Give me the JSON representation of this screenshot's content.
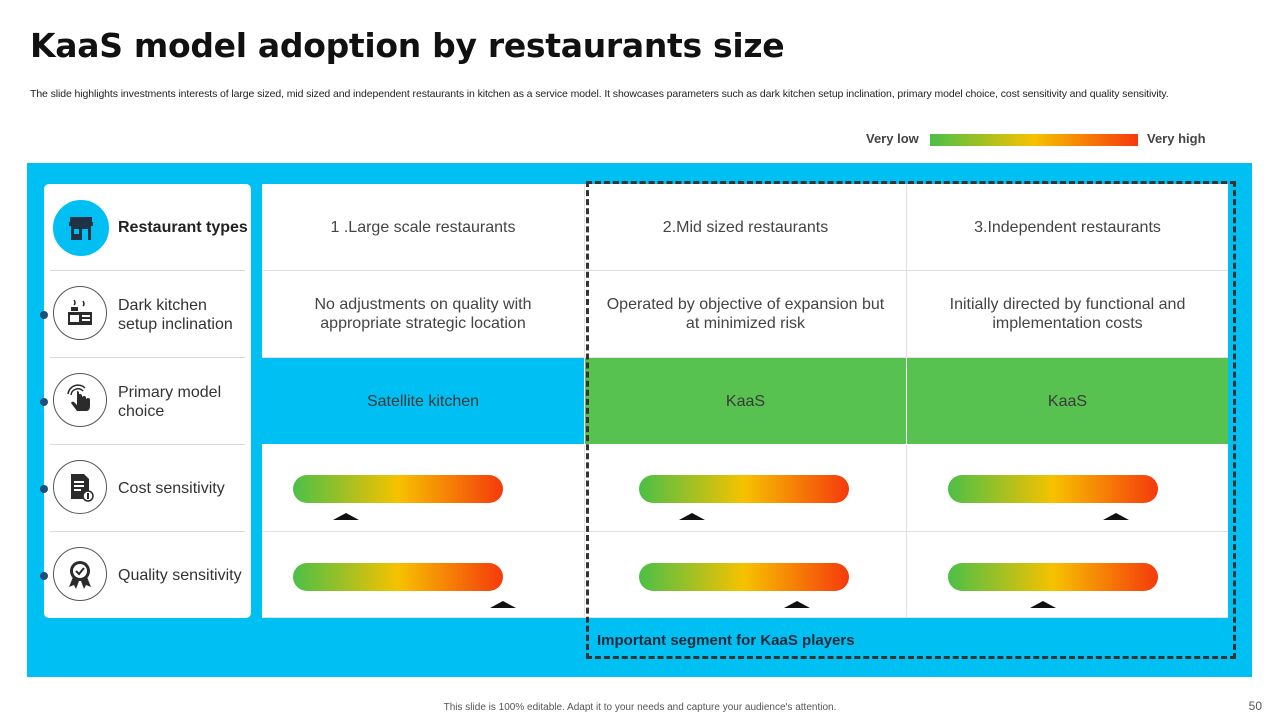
{
  "title": "KaaS model adoption by restaurants size",
  "subtitle": "The slide highlights investments interests of large sized, mid sized and independent restaurants in kitchen as a service model. It showcases parameters such as dark kitchen setup inclination, primary model choice, cost sensitivity and quality sensitivity.",
  "legend": {
    "low": "Very low",
    "high": "Very high",
    "colors": [
      "#4cbf47",
      "#f6c200",
      "#f53a0c"
    ]
  },
  "rows": [
    {
      "label": "Restaurant types",
      "icon": "store-icon"
    },
    {
      "label": "Dark kitchen setup inclination",
      "icon": "kitchen-icon"
    },
    {
      "label": "Primary model choice",
      "icon": "hand-pointer-icon"
    },
    {
      "label": "Cost sensitivity",
      "icon": "cost-document-icon"
    },
    {
      "label": "Quality sensitivity",
      "icon": "quality-badge-icon"
    }
  ],
  "columns": [
    {
      "header": "1 .Large scale restaurants",
      "inclination": "No adjustments  on quality with appropriate strategic location",
      "model_choice": "Satellite kitchen",
      "cost_level": 0.25,
      "quality_level": 1.0
    },
    {
      "header": "2.Mid sized restaurants",
      "inclination": "Operated by objective of expansion but at minimized risk",
      "model_choice": "KaaS",
      "cost_level": 0.25,
      "quality_level": 0.75
    },
    {
      "header": "3.Independent  restaurants",
      "inclination": "Initially directed  by functional and implementation costs",
      "model_choice": "KaaS",
      "cost_level": 0.8,
      "quality_level": 0.45
    }
  ],
  "colors": {
    "panel": "#00bff3",
    "kaas_green": "#57c24f",
    "satellite_blue": "#00bff3"
  },
  "segment_note": "Important segment for KaaS players",
  "footer": "This slide is 100% editable. Adapt it to your needs and capture your audience's attention.",
  "page_number": "50"
}
